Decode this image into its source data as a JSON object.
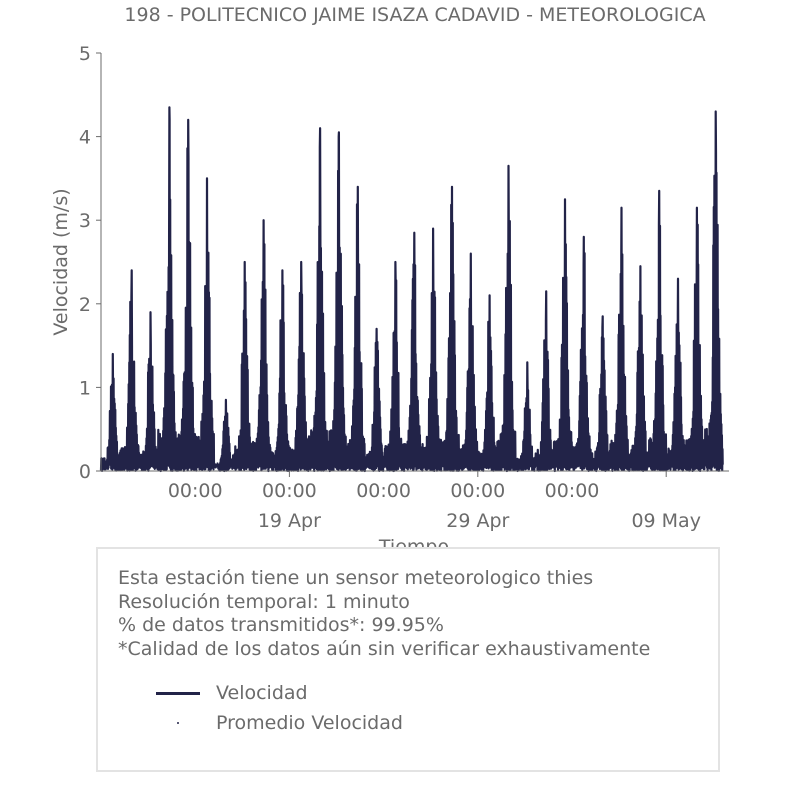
{
  "chart_data": {
    "type": "line",
    "title": "198 - POLITECNICO JAIME ISAZA CADAVID - METEOROLOGICA",
    "xlabel": "Tiempo",
    "ylabel": "Velocidad (m/s)",
    "ylim": [
      0,
      5
    ],
    "yticks": [
      "0",
      "1",
      "2",
      "3",
      "4",
      "5"
    ],
    "xlim": [
      "2024-04-09T00:00",
      "2024-05-12T08:00"
    ],
    "xticks_time": [
      "00:00",
      "00:00",
      "00:00",
      "00:00",
      "00:00"
    ],
    "xticks_date": [
      "19 Apr",
      "29 Apr",
      "09 May"
    ],
    "grid": false,
    "series": [
      {
        "name": "Velocidad",
        "color": "#222348",
        "daily_peaks": [
          {
            "date": "2024-04-09",
            "max": 1.4
          },
          {
            "date": "2024-04-10",
            "max": 2.4
          },
          {
            "date": "2024-04-11",
            "max": 1.9
          },
          {
            "date": "2024-04-12",
            "max": 4.35
          },
          {
            "date": "2024-04-13",
            "max": 4.2
          },
          {
            "date": "2024-04-14",
            "max": 3.5
          },
          {
            "date": "2024-04-15",
            "max": 0.85
          },
          {
            "date": "2024-04-16",
            "max": 2.5
          },
          {
            "date": "2024-04-17",
            "max": 3.0
          },
          {
            "date": "2024-04-18",
            "max": 2.4
          },
          {
            "date": "2024-04-19",
            "max": 2.5
          },
          {
            "date": "2024-04-20",
            "max": 4.1
          },
          {
            "date": "2024-04-21",
            "max": 4.05
          },
          {
            "date": "2024-04-22",
            "max": 3.4
          },
          {
            "date": "2024-04-23",
            "max": 1.7
          },
          {
            "date": "2024-04-24",
            "max": 2.5
          },
          {
            "date": "2024-04-25",
            "max": 2.85
          },
          {
            "date": "2024-04-26",
            "max": 2.9
          },
          {
            "date": "2024-04-27",
            "max": 3.4
          },
          {
            "date": "2024-04-28",
            "max": 2.6
          },
          {
            "date": "2024-04-29",
            "max": 2.1
          },
          {
            "date": "2024-04-30",
            "max": 3.65
          },
          {
            "date": "2024-05-01",
            "max": 1.3
          },
          {
            "date": "2024-05-02",
            "max": 2.15
          },
          {
            "date": "2024-05-03",
            "max": 3.25
          },
          {
            "date": "2024-05-04",
            "max": 2.8
          },
          {
            "date": "2024-05-05",
            "max": 1.85
          },
          {
            "date": "2024-05-06",
            "max": 3.15
          },
          {
            "date": "2024-05-07",
            "max": 2.45
          },
          {
            "date": "2024-05-08",
            "max": 3.35
          },
          {
            "date": "2024-05-09",
            "max": 2.3
          },
          {
            "date": "2024-05-10",
            "max": 3.15
          },
          {
            "date": "2024-05-11",
            "max": 4.3
          }
        ]
      },
      {
        "name": "Promedio Velocidad",
        "color": "#222348",
        "marker": "dot"
      }
    ]
  },
  "info": {
    "line1": "Esta estación tiene un sensor meteorologico thies",
    "line2": "Resolución temporal: 1 minuto",
    "line3": "% de datos transmitidos*: 99.95%",
    "line4": "*Calidad de los datos aún sin verificar exhaustivamente"
  },
  "legend": {
    "line_label": "Velocidad",
    "dot_label": "Promedio Velocidad"
  }
}
